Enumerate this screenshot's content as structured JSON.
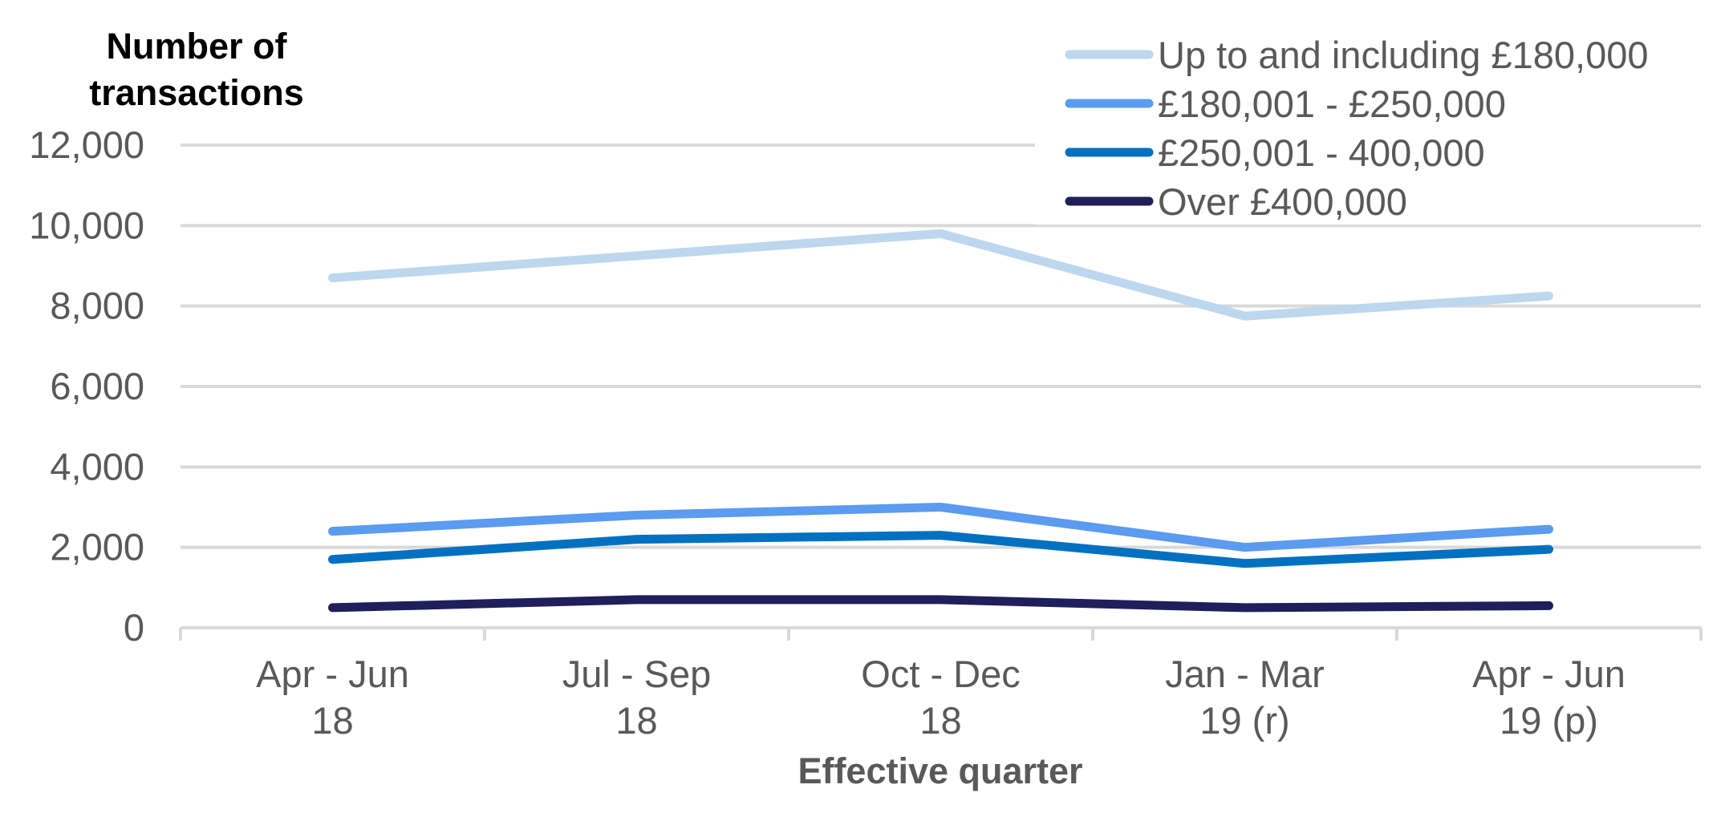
{
  "chart_data": {
    "type": "line",
    "title": "",
    "ylabel_lines": [
      "Number of",
      "transactions"
    ],
    "xlabel": "Effective quarter",
    "categories": [
      [
        "Apr - Jun",
        "18"
      ],
      [
        "Jul - Sep",
        "18"
      ],
      [
        "Oct - Dec",
        "18"
      ],
      [
        "Jan - Mar",
        "19 (r)"
      ],
      [
        "Apr - Jun",
        "19 (p)"
      ]
    ],
    "ylim": [
      0,
      12000
    ],
    "yticks": [
      0,
      2000,
      4000,
      6000,
      8000,
      10000,
      12000
    ],
    "ytick_labels": [
      "0",
      "2,000",
      "4,000",
      "6,000",
      "8,000",
      "10,000",
      "12,000"
    ],
    "grid": true,
    "legend_position": "top-right",
    "series": [
      {
        "name": "Up to and including £180,000",
        "color": "#bdd7ee",
        "values": [
          8700,
          9250,
          9800,
          7750,
          8250
        ]
      },
      {
        "name": "£180,001 - £250,000",
        "color": "#5b9bf0",
        "values": [
          2400,
          2800,
          3000,
          2000,
          2450
        ]
      },
      {
        "name": "£250,001 - 400,000",
        "color": "#0070c0",
        "values": [
          1700,
          2200,
          2300,
          1600,
          1950
        ]
      },
      {
        "name": "Over £400,000",
        "color": "#1f1f5c",
        "values": [
          500,
          700,
          700,
          500,
          550
        ]
      }
    ]
  }
}
